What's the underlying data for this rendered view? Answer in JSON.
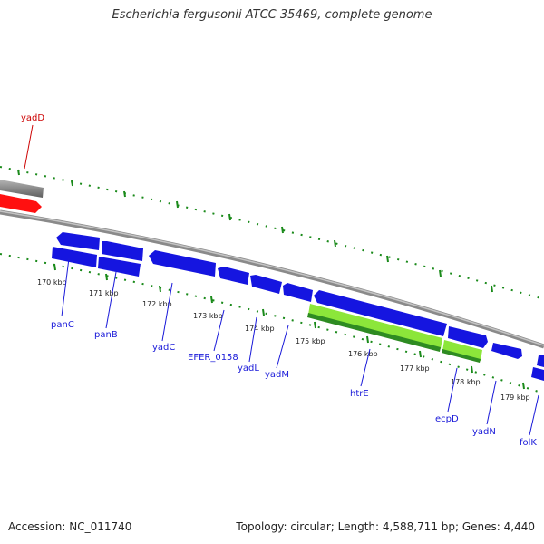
{
  "title": "Escherichia fergusonii ATCC 35469, complete genome",
  "footer": {
    "accession": "Accession: NC_011740",
    "summary": "Topology: circular; Length: 4,588,711 bp; Genes: 4,440"
  },
  "colors": {
    "forward_gene": "#1515e0",
    "reverse_gene": "#1515e0",
    "highlight_gene": "#ff1010",
    "rrna_like": "#8ce63a",
    "rrna_dark": "#2e8b22",
    "backbone": "#8a8a8a",
    "ticks": "#1a8a1a",
    "label": "#1a1ad9",
    "label_red": "#cc0000"
  },
  "kbp_ticks": [
    "170 kbp",
    "171 kbp",
    "172 kbp",
    "173 kbp",
    "174 kbp",
    "175 kbp",
    "176 kbp",
    "177 kbp",
    "178 kbp",
    "179 kbp"
  ],
  "genes": [
    {
      "name": "yadD",
      "highlight": true
    },
    {
      "name": "panC"
    },
    {
      "name": "panB"
    },
    {
      "name": "yadC"
    },
    {
      "name": "EFER_0158"
    },
    {
      "name": "yadL"
    },
    {
      "name": "yadM"
    },
    {
      "name": "htrE"
    },
    {
      "name": "ecpD"
    },
    {
      "name": "yadN"
    },
    {
      "name": "folK"
    }
  ]
}
